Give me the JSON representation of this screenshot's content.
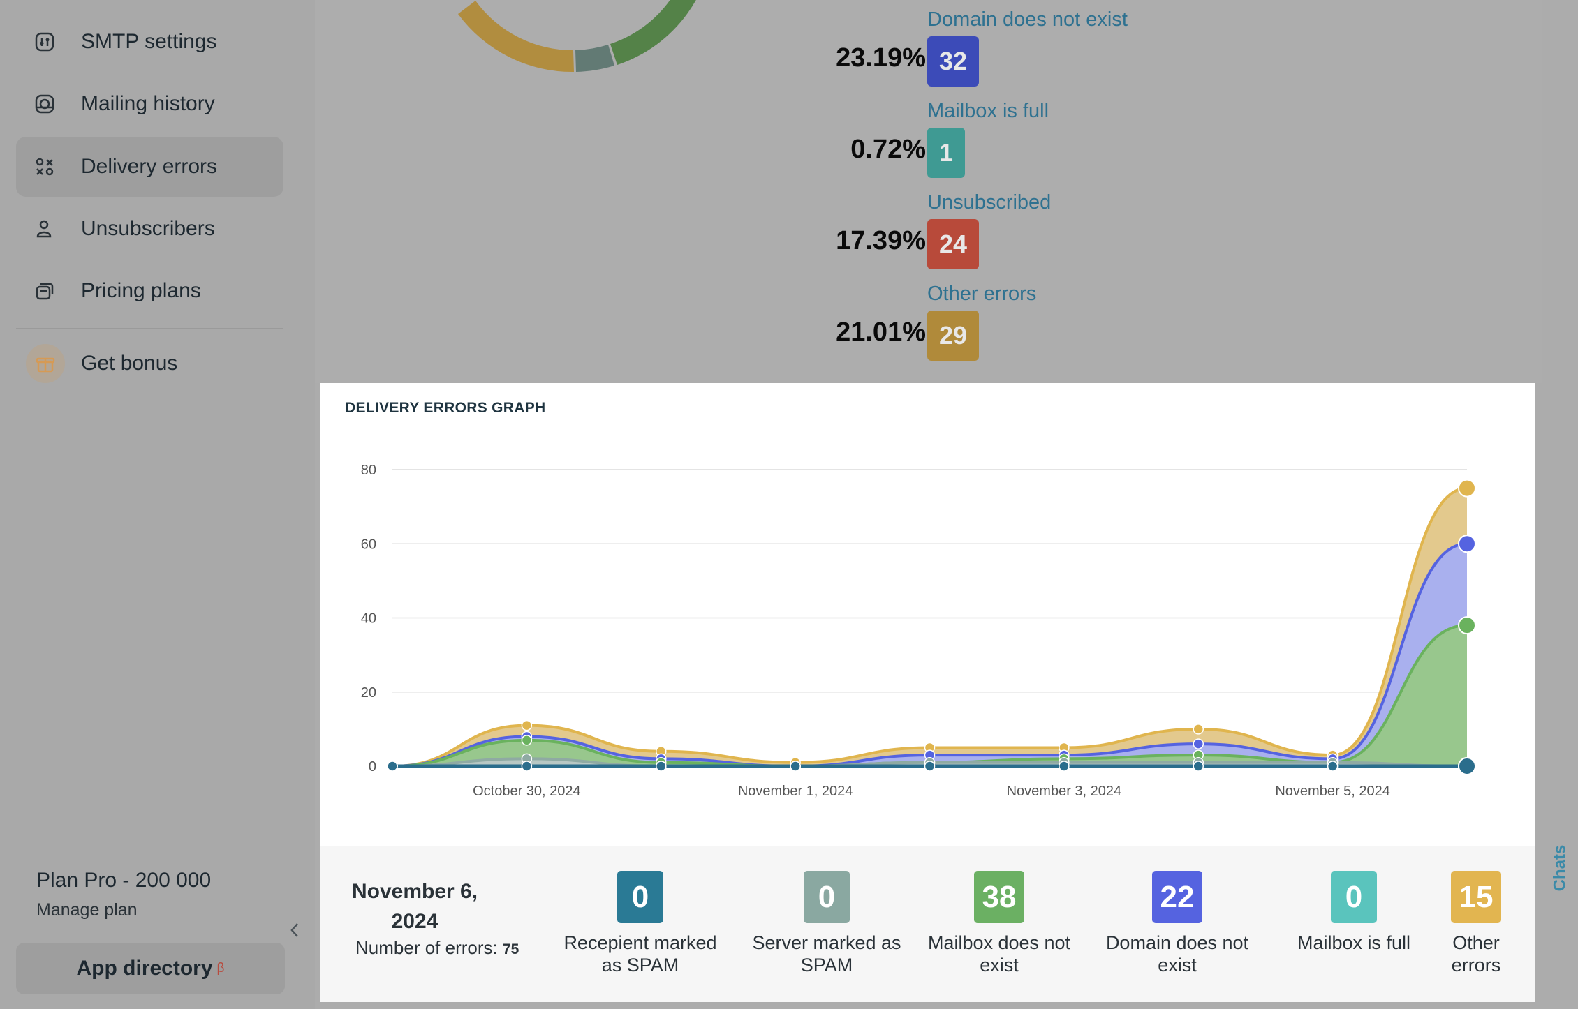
{
  "sidebar": {
    "items": [
      {
        "label": "SMTP settings",
        "icon": "smtp-icon"
      },
      {
        "label": "Mailing history",
        "icon": "history-icon"
      },
      {
        "label": "Delivery errors",
        "icon": "errors-icon",
        "active": true
      },
      {
        "label": "Unsubscribers",
        "icon": "user-icon"
      },
      {
        "label": "Pricing plans",
        "icon": "pricing-icon"
      }
    ],
    "bonus_label": "Get bonus",
    "plan_name": "Plan Pro - 200 000",
    "manage_plan": "Manage plan",
    "app_directory": "App directory",
    "beta_mark": "β"
  },
  "error_breakdown": [
    {
      "label": "Domain does not exist",
      "percent": "23.19%",
      "count": "32",
      "color": "#3c4bb8"
    },
    {
      "label": "Mailbox is full",
      "percent": "0.72%",
      "count": "1",
      "color": "#3f9a93"
    },
    {
      "label": "Unsubscribed",
      "percent": "17.39%",
      "count": "24",
      "color": "#b84a3a"
    },
    {
      "label": "Other errors",
      "percent": "21.01%",
      "count": "29",
      "color": "#b08a3a"
    }
  ],
  "chart_data": {
    "type": "area",
    "title": "DELIVERY ERRORS GRAPH",
    "ylim": [
      0,
      80
    ],
    "yticks": [
      "0",
      "20",
      "40",
      "60",
      "80"
    ],
    "xtick_labels": [
      "October 30, 2024",
      "November 1, 2024",
      "November 3, 2024",
      "November 5, 2024"
    ],
    "x": [
      "Oct 29",
      "Oct 30",
      "Oct 31",
      "Nov 1",
      "Nov 2",
      "Nov 3",
      "Nov 4",
      "Nov 5",
      "Nov 6"
    ],
    "series_stacked_totals": [
      {
        "name": "Other errors",
        "color": "#e0b54e",
        "values": [
          0,
          11,
          4,
          1,
          5,
          5,
          10,
          3,
          75
        ]
      },
      {
        "name": "Domain does not exist",
        "color": "#5563e0",
        "values": [
          0,
          8,
          2,
          0,
          3,
          3,
          6,
          2,
          60
        ]
      },
      {
        "name": "Mailbox does not exist",
        "color": "#6ab25e",
        "values": [
          0,
          7,
          1,
          0,
          1,
          2,
          3,
          1,
          38
        ]
      },
      {
        "name": "Server marked as SPAM",
        "color": "#8faaa3",
        "values": [
          0,
          2,
          0,
          0,
          1,
          1,
          1,
          1,
          0
        ]
      },
      {
        "name": "Recepient marked as SPAM",
        "color": "#2a6d8c",
        "values": [
          0,
          0,
          0,
          0,
          0,
          0,
          0,
          0,
          0
        ]
      }
    ]
  },
  "summary": {
    "date": "November 6, 2024",
    "count_label": "Number of errors:",
    "count_value": "75",
    "columns": [
      {
        "value": "0",
        "label": "Recepient marked as SPAM",
        "color": "#2a7a95"
      },
      {
        "value": "0",
        "label": "Server marked as SPAM",
        "color": "#8aa8a1"
      },
      {
        "value": "38",
        "label": "Mailbox does not exist",
        "color": "#6bb063"
      },
      {
        "value": "22",
        "label": "Domain does not exist",
        "color": "#5563e0"
      },
      {
        "value": "0",
        "label": "Mailbox is full",
        "color": "#5ac4bd"
      },
      {
        "value": "15",
        "label": "Other errors",
        "color": "#e2b550"
      }
    ]
  },
  "chats_label": "Chats"
}
